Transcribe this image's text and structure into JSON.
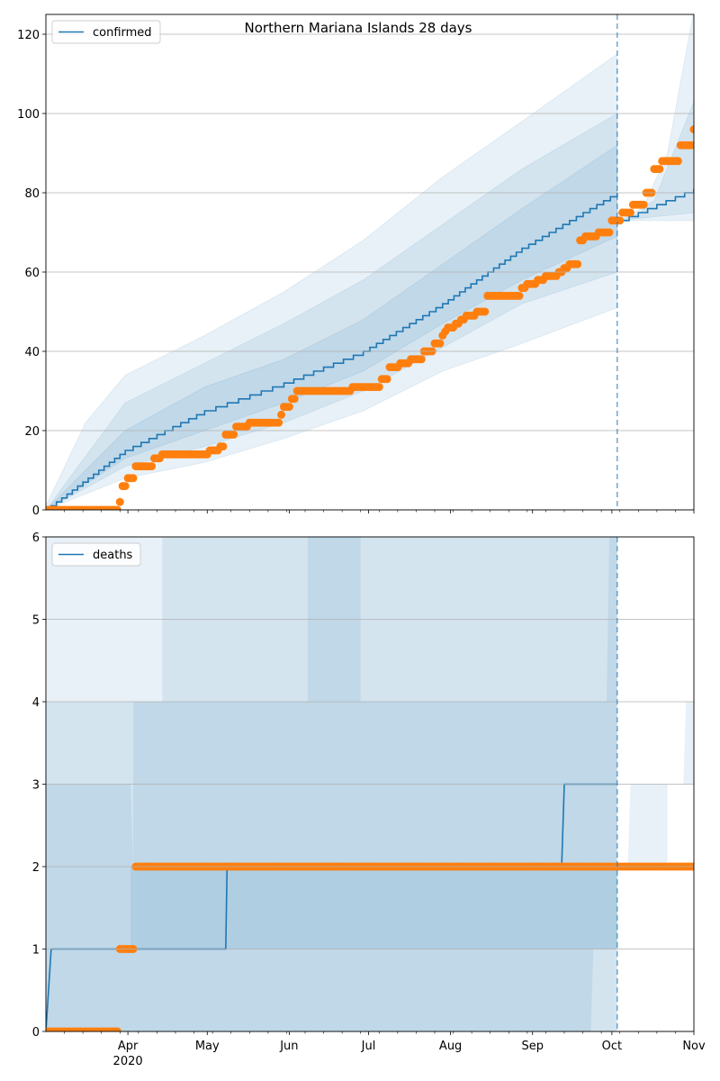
{
  "chart_data": [
    {
      "type": "line",
      "title": "Northern Mariana Islands 28 days",
      "legend": {
        "label": "confirmed",
        "placement": "top-left"
      },
      "xlabel": "",
      "ylabel": "",
      "x_months": [
        "Apr",
        "May",
        "Jun",
        "Jul",
        "Aug",
        "Sep",
        "Oct",
        "Nov"
      ],
      "x_year_label": "2020",
      "x_range_days": [
        0,
        245
      ],
      "forecast_start_day": 216,
      "ylim": [
        0,
        125
      ],
      "yticks": [
        0,
        20,
        40,
        60,
        80,
        100,
        120
      ],
      "grid": "horizontal",
      "model_median": [
        [
          0,
          0
        ],
        [
          30,
          15
        ],
        [
          60,
          25
        ],
        [
          90,
          32
        ],
        [
          120,
          40
        ],
        [
          150,
          52
        ],
        [
          180,
          66
        ],
        [
          216,
          80
        ],
        [
          217,
          73
        ],
        [
          245,
          81
        ]
      ],
      "bands": [
        {
          "name": "outer",
          "upper": [
            [
              0,
              1
            ],
            [
              15,
              22
            ],
            [
              30,
              34
            ],
            [
              60,
              44
            ],
            [
              90,
              55
            ],
            [
              120,
              68
            ],
            [
              150,
              84
            ],
            [
              180,
              98
            ],
            [
              216,
              115
            ]
          ],
          "lower": [
            [
              0,
              0
            ],
            [
              30,
              8
            ],
            [
              60,
              12
            ],
            [
              90,
              18
            ],
            [
              120,
              25
            ],
            [
              150,
              35
            ],
            [
              180,
              42
            ],
            [
              216,
              51
            ]
          ]
        },
        {
          "name": "middle",
          "upper": [
            [
              0,
              0
            ],
            [
              30,
              27
            ],
            [
              60,
              37
            ],
            [
              90,
              47
            ],
            [
              120,
              58
            ],
            [
              150,
              72
            ],
            [
              180,
              86
            ],
            [
              216,
              100
            ]
          ],
          "lower": [
            [
              0,
              0
            ],
            [
              30,
              11
            ],
            [
              60,
              16
            ],
            [
              90,
              22
            ],
            [
              120,
              30
            ],
            [
              150,
              41
            ],
            [
              180,
              52
            ],
            [
              216,
              60
            ]
          ]
        },
        {
          "name": "inner",
          "upper": [
            [
              0,
              0
            ],
            [
              30,
              20
            ],
            [
              60,
              31
            ],
            [
              90,
              38
            ],
            [
              120,
              48
            ],
            [
              150,
              62
            ],
            [
              180,
              76
            ],
            [
              216,
              92
            ]
          ],
          "lower": [
            [
              0,
              0
            ],
            [
              30,
              13
            ],
            [
              60,
              20
            ],
            [
              90,
              27
            ],
            [
              120,
              35
            ],
            [
              150,
              47
            ],
            [
              180,
              58
            ],
            [
              216,
              69
            ]
          ]
        },
        {
          "name": "fc-outer",
          "upper": [
            [
              217,
              73
            ],
            [
              225,
              75
            ],
            [
              235,
              90
            ],
            [
              245,
              126
            ]
          ],
          "lower": [
            [
              217,
              73
            ],
            [
              245,
              73
            ]
          ]
        },
        {
          "name": "fc-mid",
          "upper": [
            [
              217,
              73
            ],
            [
              230,
              78
            ],
            [
              245,
              103
            ]
          ],
          "lower": [
            [
              217,
              73
            ],
            [
              245,
              75
            ]
          ]
        }
      ],
      "observed": [
        [
          0,
          0
        ],
        [
          27,
          0
        ],
        [
          28,
          2
        ],
        [
          29,
          6
        ],
        [
          31,
          8
        ],
        [
          34,
          11
        ],
        [
          41,
          13
        ],
        [
          44,
          14
        ],
        [
          62,
          15
        ],
        [
          66,
          16
        ],
        [
          68,
          19
        ],
        [
          72,
          21
        ],
        [
          77,
          22
        ],
        [
          89,
          24
        ],
        [
          90,
          26
        ],
        [
          93,
          28
        ],
        [
          95,
          30
        ],
        [
          116,
          31
        ],
        [
          127,
          33
        ],
        [
          130,
          36
        ],
        [
          134,
          37
        ],
        [
          138,
          38
        ],
        [
          143,
          40
        ],
        [
          147,
          42
        ],
        [
          150,
          44
        ],
        [
          151,
          45
        ],
        [
          152,
          46
        ],
        [
          155,
          47
        ],
        [
          157,
          48
        ],
        [
          159,
          49
        ],
        [
          163,
          50
        ],
        [
          167,
          54
        ],
        [
          180,
          56
        ],
        [
          182,
          57
        ],
        [
          186,
          58
        ],
        [
          189,
          59
        ],
        [
          194,
          60
        ],
        [
          196,
          61
        ],
        [
          198,
          62
        ],
        [
          202,
          68
        ],
        [
          204,
          69
        ],
        [
          209,
          70
        ],
        [
          214,
          73
        ],
        [
          218,
          75
        ],
        [
          222,
          77
        ],
        [
          227,
          80
        ],
        [
          230,
          86
        ],
        [
          233,
          88
        ],
        [
          240,
          92
        ],
        [
          245,
          96
        ]
      ]
    },
    {
      "type": "line",
      "legend": {
        "label": "deaths",
        "placement": "top-left"
      },
      "xlabel": "",
      "ylabel": "",
      "x_months": [
        "Apr",
        "May",
        "Jun",
        "Jul",
        "Aug",
        "Sep",
        "Oct",
        "Nov"
      ],
      "x_year_label": "2020",
      "x_range_days": [
        0,
        245
      ],
      "forecast_start_day": 216,
      "ylim": [
        0,
        6
      ],
      "yticks": [
        0,
        1,
        2,
        3,
        4,
        5,
        6
      ],
      "grid": "horizontal",
      "model_median": [
        [
          0,
          0
        ],
        [
          2,
          1
        ],
        [
          68,
          1
        ],
        [
          68.5,
          2
        ],
        [
          195,
          2
        ],
        [
          196,
          3
        ],
        [
          216,
          3
        ]
      ],
      "observed": [
        [
          0,
          0
        ],
        [
          28,
          0
        ],
        [
          28,
          1
        ],
        [
          34,
          1
        ],
        [
          34,
          2
        ],
        [
          245,
          2
        ]
      ]
    }
  ]
}
